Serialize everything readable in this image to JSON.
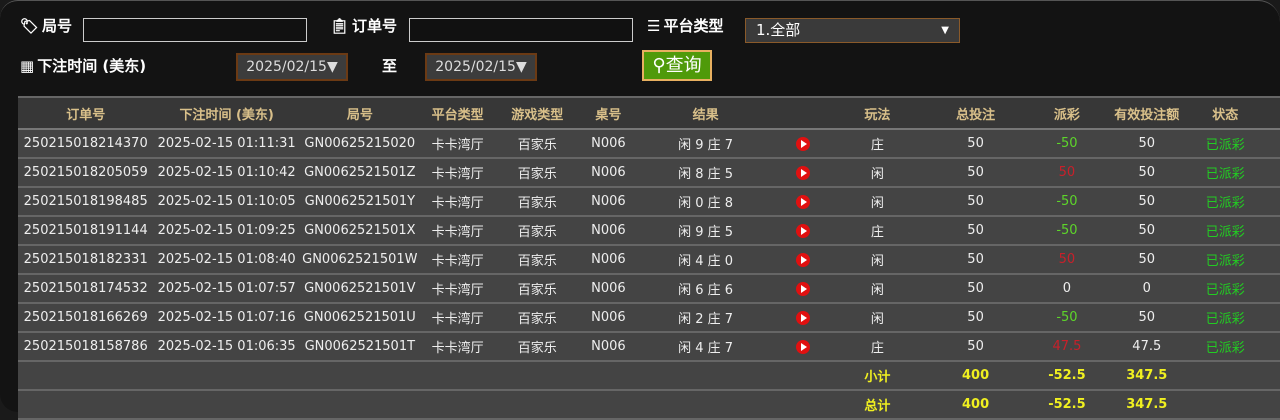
{
  "filters": {
    "round_label": "局号",
    "order_label": "订单号",
    "platform_label": "平台类型",
    "platform_value": "1.全部",
    "time_label": "下注时间 (美东)",
    "date_from": "2025/02/15▼",
    "to_label": "至",
    "date_to": "2025/02/15▼",
    "query_label": "查询"
  },
  "table": {
    "headers": [
      "订单号",
      "下注时间 (美东)",
      "局号",
      "平台类型",
      "游戏类型",
      "桌号",
      "结果",
      "",
      "玩法",
      "总投注",
      "派彩",
      "有效投注额",
      "状态",
      ""
    ],
    "rows": [
      [
        "250215018214370",
        "2025-02-15 01:11:31",
        "GN00625215020",
        "卡卡湾厅",
        "百家乐",
        "N006",
        "闲 9 庄 7",
        "庄",
        "50",
        "-50",
        "50",
        "已派彩"
      ],
      [
        "250215018205059",
        "2025-02-15 01:10:42",
        "GN0062521501Z",
        "卡卡湾厅",
        "百家乐",
        "N006",
        "闲 8 庄 5",
        "闲",
        "50",
        "50",
        "50",
        "已派彩"
      ],
      [
        "250215018198485",
        "2025-02-15 01:10:05",
        "GN0062521501Y",
        "卡卡湾厅",
        "百家乐",
        "N006",
        "闲 0 庄 8",
        "闲",
        "50",
        "-50",
        "50",
        "已派彩"
      ],
      [
        "250215018191144",
        "2025-02-15 01:09:25",
        "GN0062521501X",
        "卡卡湾厅",
        "百家乐",
        "N006",
        "闲 9 庄 5",
        "庄",
        "50",
        "-50",
        "50",
        "已派彩"
      ],
      [
        "250215018182331",
        "2025-02-15 01:08:40",
        "GN0062521501W",
        "卡卡湾厅",
        "百家乐",
        "N006",
        "闲 4 庄 0",
        "闲",
        "50",
        "50",
        "50",
        "已派彩"
      ],
      [
        "250215018174532",
        "2025-02-15 01:07:57",
        "GN0062521501V",
        "卡卡湾厅",
        "百家乐",
        "N006",
        "闲 6 庄 6",
        "闲",
        "50",
        "0",
        "0",
        "已派彩"
      ],
      [
        "250215018166269",
        "2025-02-15 01:07:16",
        "GN0062521501U",
        "卡卡湾厅",
        "百家乐",
        "N006",
        "闲 2 庄 7",
        "闲",
        "50",
        "-50",
        "50",
        "已派彩"
      ],
      [
        "250215018158786",
        "2025-02-15 01:06:35",
        "GN0062521501T",
        "卡卡湾厅",
        "百家乐",
        "N006",
        "闲 4 庄 7",
        "庄",
        "50",
        "47.5",
        "47.5",
        "已派彩"
      ]
    ],
    "subtotal": {
      "label": "小计",
      "bet": "400",
      "payout": "-52.5",
      "valid": "347.5"
    },
    "total": {
      "label": "总计",
      "bet": "400",
      "payout": "-52.5",
      "valid": "347.5"
    }
  },
  "colors": {
    "negative": "#5dd52a",
    "positive": "#c8202a",
    "status": "#22cc22",
    "sum": "#f0f020"
  }
}
